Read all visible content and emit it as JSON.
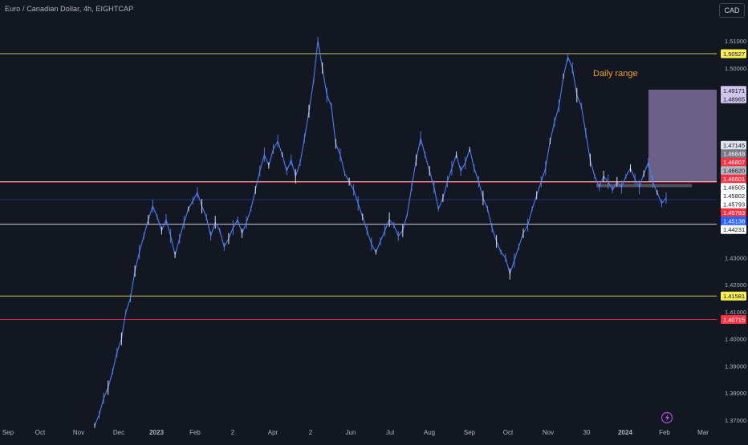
{
  "header": {
    "title": "Euro / Canadian Dollar, 4h, EIGHTCAP",
    "currency_button": "CAD"
  },
  "annotation": {
    "text": "Daily range",
    "color": "#f0a030"
  },
  "colors": {
    "background": "#131722",
    "price_line": "#4d7cf6",
    "yellow_level": "#f5ef5a",
    "white_level": "#ffffff",
    "red_level": "#f23645",
    "blue_level": "#2962ff"
  },
  "chart_data": {
    "type": "line",
    "title": "Euro / Canadian Dollar, 4h, EIGHTCAP",
    "ylim": [
      1.365,
      1.514
    ],
    "y_ticks": [
      "1.51000",
      "1.50000",
      "1.44000",
      "1.43000",
      "1.42000",
      "1.41000",
      "1.40000",
      "1.39000",
      "1.38000",
      "1.37000"
    ],
    "x_labels": [
      "Sep",
      "Oct",
      "Nov",
      "Dec",
      "2023",
      "Feb",
      "2",
      "Apr",
      "2",
      "Jun",
      "Jul",
      "Aug",
      "Sep",
      "Oct",
      "Nov",
      "30",
      "2024",
      "Feb",
      "Mar"
    ],
    "series": [
      {
        "values": [
          1.368,
          1.372,
          1.378,
          1.382,
          1.388,
          1.395,
          1.4,
          1.41,
          1.415,
          1.425,
          1.432,
          1.438,
          1.444,
          1.449,
          1.445,
          1.44,
          1.444,
          1.438,
          1.431,
          1.437,
          1.443,
          1.448,
          1.451,
          1.454,
          1.449,
          1.445,
          1.438,
          1.443,
          1.44,
          1.434,
          1.437,
          1.441,
          1.444,
          1.439,
          1.443,
          1.448,
          1.455,
          1.462,
          1.468,
          1.464,
          1.47,
          1.473,
          1.468,
          1.462,
          1.466,
          1.46,
          1.465,
          1.474,
          1.484,
          1.495,
          1.51,
          1.5,
          1.49,
          1.486,
          1.472,
          1.468,
          1.461,
          1.458,
          1.455,
          1.45,
          1.445,
          1.44,
          1.435,
          1.432,
          1.436,
          1.44,
          1.444,
          1.442,
          1.438,
          1.44,
          1.446,
          1.456,
          1.466,
          1.474,
          1.468,
          1.462,
          1.456,
          1.448,
          1.452,
          1.458,
          1.463,
          1.468,
          1.462,
          1.465,
          1.47,
          1.463,
          1.458,
          1.452,
          1.448,
          1.441,
          1.436,
          1.432,
          1.43,
          1.424,
          1.429,
          1.434,
          1.439,
          1.442,
          1.448,
          1.453,
          1.458,
          1.463,
          1.473,
          1.48,
          1.486,
          1.497,
          1.504,
          1.5,
          1.49,
          1.486,
          1.476,
          1.466,
          1.46,
          1.456,
          1.46,
          1.458,
          1.455,
          1.458,
          1.456,
          1.46,
          1.463,
          1.459,
          1.456,
          1.461,
          1.465,
          1.458,
          1.454,
          1.45,
          1.452
        ]
      }
    ],
    "horizontal_levels": [
      {
        "price": 1.50527,
        "label": "1.50527",
        "color": "#f5ef5a",
        "line": true
      },
      {
        "price": 1.49171,
        "label": "1.49171",
        "color": "#d1c4e9",
        "line": false
      },
      {
        "price": 1.48965,
        "label": "1.48965",
        "color": "#d1c4e9",
        "line": false
      },
      {
        "price": 1.47145,
        "label": "1.47145",
        "color": "#e0e3eb",
        "line": false
      },
      {
        "price": 1.46848,
        "label": "1.46848",
        "color": "#787b86",
        "line": false
      },
      {
        "price": 1.46807,
        "label": "1.46807",
        "color": "#f23645",
        "line": false
      },
      {
        "price": 1.4662,
        "label": "1.46620",
        "color": "#b2b5be",
        "line": false
      },
      {
        "price": 1.46601,
        "label": "1.46601",
        "color": "#f23645",
        "line": false
      },
      {
        "price": 1.46505,
        "label": "1.46505",
        "color": "#ffffff",
        "line": false
      },
      {
        "price": 1.45802,
        "label": "1.45802",
        "color": "#ffffff",
        "line": true
      },
      {
        "price": 1.45793,
        "label": "1.45793",
        "color": "#ffffff",
        "line": false
      },
      {
        "price": 1.45783,
        "label": "1.45783",
        "color": "#f23645",
        "line": true
      },
      {
        "price": 1.45138,
        "label": "1.45138",
        "color": "#2962ff",
        "line": true
      },
      {
        "price": 1.44231,
        "label": "1.44231",
        "color": "#ffffff",
        "line": true
      },
      {
        "price": 1.41581,
        "label": "1.41581",
        "color": "#f5ef5a",
        "line": true
      },
      {
        "price": 1.40715,
        "label": "1.40715",
        "color": "#f23645",
        "line": true
      }
    ],
    "boxes": [
      {
        "name": "daily-range",
        "top": 1.492,
        "bottom": 1.458,
        "color": "#b39ddb"
      },
      {
        "name": "consolidation-zone",
        "top": 1.4572,
        "bottom": 1.456,
        "color": "#787b86"
      }
    ]
  }
}
